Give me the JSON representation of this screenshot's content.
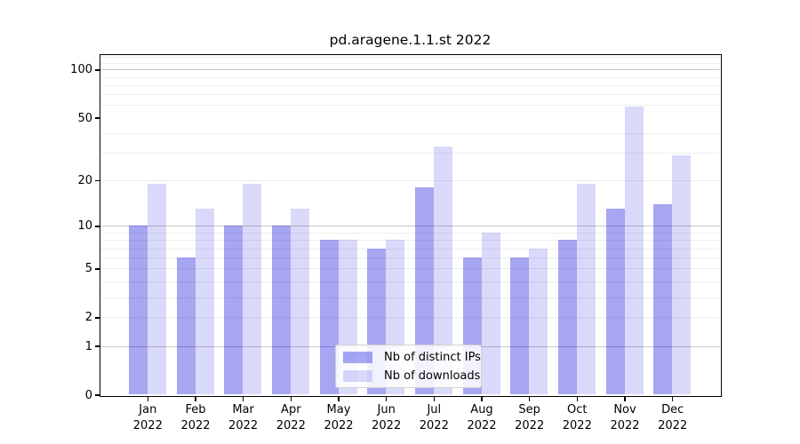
{
  "chart_data": {
    "type": "bar",
    "title": "pd.aragene.1.1.st 2022",
    "categories": [
      "Jan 2022",
      "Feb 2022",
      "Mar 2022",
      "Apr 2022",
      "May 2022",
      "Jun 2022",
      "Jul 2022",
      "Aug 2022",
      "Sep 2022",
      "Oct 2022",
      "Nov 2022",
      "Dec 2022"
    ],
    "series": [
      {
        "name": "Nb of distinct IPs",
        "color": "rgba(0, 0, 221, 0.35)",
        "color_on_white": "#a6a6f3",
        "values": [
          10,
          6,
          10,
          10,
          8,
          7,
          18,
          6,
          6,
          8,
          13,
          14
        ]
      },
      {
        "name": "Nb of downloads",
        "color": "rgba(0, 0, 221, 0.15)",
        "color_on_white": "#d9d9fa",
        "values": [
          19,
          13,
          19,
          13,
          8,
          8,
          33,
          9,
          7,
          19,
          59,
          29
        ]
      }
    ],
    "yscale": "log1p",
    "ylim": [
      0,
      124
    ],
    "yticks": [
      0,
      1,
      2,
      5,
      10,
      20,
      50,
      100
    ],
    "major_gridlines": [
      1,
      10,
      100
    ],
    "minor_gridlines": [
      2,
      3,
      4,
      5,
      6,
      7,
      8,
      9,
      20,
      30,
      40,
      60,
      70,
      80,
      90,
      110,
      120
    ],
    "grid": true,
    "legend_position": "lower center",
    "axis_color": "#000000",
    "major_grid_color": "#c8c8c8",
    "minor_grid_color": "#eeeeee"
  }
}
